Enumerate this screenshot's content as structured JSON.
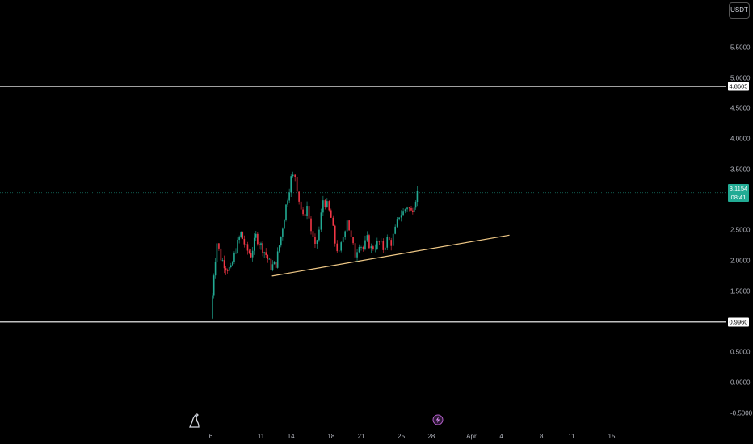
{
  "currency_button": "USDT",
  "chart_data": {
    "type": "candlestick",
    "title": "",
    "xlabel": "",
    "ylabel": "",
    "ylim": [
      -0.5,
      5.9
    ],
    "y_ticks": [
      "5.5000",
      "5.0000",
      "4.5000",
      "4.0000",
      "3.5000",
      "2.5000",
      "2.0000",
      "1.5000",
      "0.5000",
      "0.0000",
      "-0.5000"
    ],
    "y_tick_values": [
      5.5,
      5.0,
      4.5,
      4.0,
      3.5,
      2.5,
      2.0,
      1.5,
      0.5,
      0.0,
      -0.5
    ],
    "x_ticks": [
      "6",
      "11",
      "14",
      "18",
      "21",
      "25",
      "28",
      "Apr",
      "4",
      "8",
      "11",
      "15"
    ],
    "x_tick_days": [
      6,
      11,
      14,
      18,
      21,
      25,
      28,
      32,
      35,
      39,
      42,
      46
    ],
    "horizontal_levels": [
      {
        "label": "4.8605",
        "value": 4.8605,
        "color": "#ffffff"
      },
      {
        "label": "0.9960",
        "value": 0.996,
        "color": "#ffffff"
      }
    ],
    "last_price": {
      "label": "3.1154",
      "value": 3.1154,
      "countdown": "08:41",
      "color": "#22ab94"
    },
    "trendline": {
      "start": {
        "day": 12.1,
        "value": 1.75
      },
      "end": {
        "day": 35.8,
        "value": 2.42
      },
      "color": "#f0c987"
    },
    "colors": {
      "up": "#22ab94",
      "down": "#f23645"
    },
    "series": [
      {
        "day": 6.0,
        "close": 1.05
      },
      {
        "day": 6.3,
        "close": 1.8
      },
      {
        "day": 6.6,
        "close": 2.3
      },
      {
        "day": 7.0,
        "close": 2.05
      },
      {
        "day": 7.5,
        "close": 1.9
      },
      {
        "day": 8.0,
        "close": 1.85
      },
      {
        "day": 8.5,
        "close": 2.2
      },
      {
        "day": 9.0,
        "close": 2.45
      },
      {
        "day": 9.5,
        "close": 2.2
      },
      {
        "day": 10.0,
        "close": 2.1
      },
      {
        "day": 10.5,
        "close": 2.4
      },
      {
        "day": 11.0,
        "close": 2.25
      },
      {
        "day": 11.5,
        "close": 2.1
      },
      {
        "day": 12.0,
        "close": 1.9
      },
      {
        "day": 12.5,
        "close": 1.95
      },
      {
        "day": 13.0,
        "close": 2.4
      },
      {
        "day": 13.5,
        "close": 2.9
      },
      {
        "day": 14.0,
        "close": 3.35
      },
      {
        "day": 14.4,
        "close": 3.4
      },
      {
        "day": 14.8,
        "close": 3.0
      },
      {
        "day": 15.2,
        "close": 2.7
      },
      {
        "day": 15.6,
        "close": 2.9
      },
      {
        "day": 16.0,
        "close": 2.5
      },
      {
        "day": 16.4,
        "close": 2.2
      },
      {
        "day": 16.8,
        "close": 2.5
      },
      {
        "day": 17.2,
        "close": 3.0
      },
      {
        "day": 17.6,
        "close": 2.9
      },
      {
        "day": 18.0,
        "close": 2.7
      },
      {
        "day": 18.4,
        "close": 2.3
      },
      {
        "day": 18.8,
        "close": 2.1
      },
      {
        "day": 19.2,
        "close": 2.4
      },
      {
        "day": 19.6,
        "close": 2.7
      },
      {
        "day": 20.0,
        "close": 2.35
      },
      {
        "day": 20.4,
        "close": 2.1
      },
      {
        "day": 20.8,
        "close": 2.3
      },
      {
        "day": 21.2,
        "close": 2.2
      },
      {
        "day": 21.6,
        "close": 2.35
      },
      {
        "day": 22.0,
        "close": 2.2
      },
      {
        "day": 22.4,
        "close": 2.25
      },
      {
        "day": 22.8,
        "close": 2.3
      },
      {
        "day": 23.2,
        "close": 2.2
      },
      {
        "day": 23.6,
        "close": 2.35
      },
      {
        "day": 24.0,
        "close": 2.3
      },
      {
        "day": 24.4,
        "close": 2.5
      },
      {
        "day": 24.8,
        "close": 2.75
      },
      {
        "day": 25.2,
        "close": 2.8
      },
      {
        "day": 25.6,
        "close": 2.9
      },
      {
        "day": 26.0,
        "close": 2.8
      },
      {
        "day": 26.3,
        "close": 2.95
      },
      {
        "day": 26.6,
        "close": 3.1154
      }
    ]
  },
  "icons": {
    "logo": "tradingview-logo-icon",
    "event": "lightning-event-icon"
  }
}
